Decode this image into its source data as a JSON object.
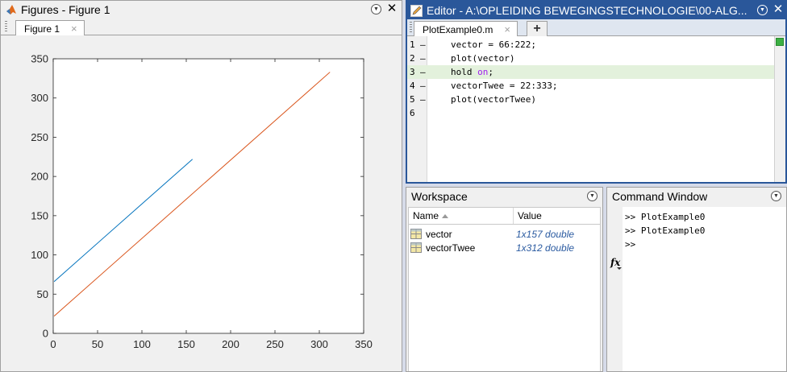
{
  "figures_panel": {
    "title": "Figures - Figure 1",
    "tab_label": "Figure 1",
    "tab_close": "×",
    "close_label": "✕"
  },
  "chart_data": {
    "type": "line",
    "title": "",
    "xlabel": "",
    "ylabel": "",
    "xlim": [
      0,
      350
    ],
    "ylim": [
      0,
      350
    ],
    "xticks": [
      0,
      50,
      100,
      150,
      200,
      250,
      300,
      350
    ],
    "yticks": [
      0,
      50,
      100,
      150,
      200,
      250,
      300,
      350
    ],
    "grid": false,
    "series": [
      {
        "color": "#0072bd",
        "x": [
          1,
          157
        ],
        "y": [
          66,
          222
        ]
      },
      {
        "color": "#d95319",
        "x": [
          1,
          312
        ],
        "y": [
          22,
          333
        ]
      }
    ]
  },
  "editor": {
    "title": "Editor - A:\\OPLEIDING BEWEGINGSTECHNOLOGIE\\00-ALG...",
    "tab_label": "PlotExample0.m",
    "tab_close": "×",
    "add_tab": "+",
    "close_label": "✕",
    "lines": [
      {
        "no": "1",
        "dash": "–",
        "pre": "vector = 66:222;",
        "kw": "",
        "post": ""
      },
      {
        "no": "2",
        "dash": "–",
        "pre": "plot(vector)",
        "kw": "",
        "post": ""
      },
      {
        "no": "3",
        "dash": "–",
        "pre": "hold ",
        "kw": "on",
        "post": ";"
      },
      {
        "no": "4",
        "dash": "–",
        "pre": "vectorTwee = 22:333;",
        "kw": "",
        "post": ""
      },
      {
        "no": "5",
        "dash": "–",
        "pre": "plot(vectorTwee)",
        "kw": "",
        "post": ""
      },
      {
        "no": "6",
        "dash": "",
        "pre": "",
        "kw": "",
        "post": ""
      }
    ]
  },
  "workspace": {
    "title": "Workspace",
    "col_name": "Name",
    "col_value": "Value",
    "variables": [
      {
        "name": "vector",
        "value": "1x157 double"
      },
      {
        "name": "vectorTwee",
        "value": "1x312 double"
      }
    ]
  },
  "command_window": {
    "title": "Command Window",
    "lines": [
      ">> PlotExample0",
      ">> PlotExample0",
      ">>"
    ]
  },
  "colors": {
    "editor_blue": "#2a579a",
    "series1": "#0072bd",
    "series2": "#d95319",
    "highlight_line": "#e3f1dc"
  }
}
